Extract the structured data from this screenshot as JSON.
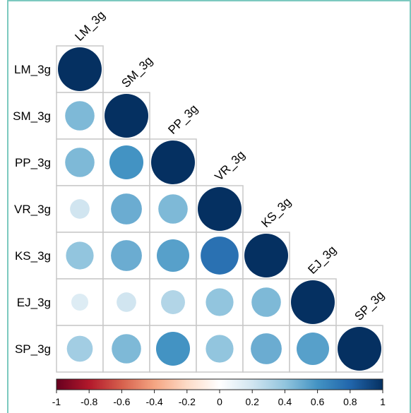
{
  "chart_data": {
    "type": "heatmap",
    "subtype": "correlation-matrix-lower-triangle-circles",
    "variables": [
      "LM_3g",
      "SM_3g",
      "PP_3g",
      "VR_3g",
      "KS_3g",
      "EJ_3g",
      "SP_3g"
    ],
    "matrix": [
      [
        1.0,
        0.45,
        0.45,
        0.2,
        0.4,
        0.15,
        0.35
      ],
      [
        0.45,
        1.0,
        0.6,
        0.5,
        0.5,
        0.2,
        0.45
      ],
      [
        0.45,
        0.6,
        1.0,
        0.45,
        0.55,
        0.3,
        0.6
      ],
      [
        0.2,
        0.5,
        0.45,
        1.0,
        0.75,
        0.4,
        0.4
      ],
      [
        0.4,
        0.5,
        0.55,
        0.75,
        1.0,
        0.45,
        0.5
      ],
      [
        0.15,
        0.2,
        0.3,
        0.4,
        0.45,
        1.0,
        0.55
      ],
      [
        0.35,
        0.45,
        0.6,
        0.4,
        0.5,
        0.55,
        1.0
      ]
    ],
    "colorbar": {
      "range": [
        -1,
        1
      ],
      "ticks": [
        "-1",
        "-0.8",
        "-0.6",
        "-0.4",
        "-0.2",
        "0",
        "0.2",
        "0.4",
        "0.6",
        "0.8",
        "1"
      ],
      "colors": [
        "#67001f",
        "#b2182b",
        "#d6604d",
        "#f4a582",
        "#fddbc7",
        "#ffffff",
        "#d1e5f0",
        "#92c5de",
        "#4393c3",
        "#2166ac",
        "#053061"
      ]
    },
    "grid": true,
    "legend": "bottom"
  }
}
